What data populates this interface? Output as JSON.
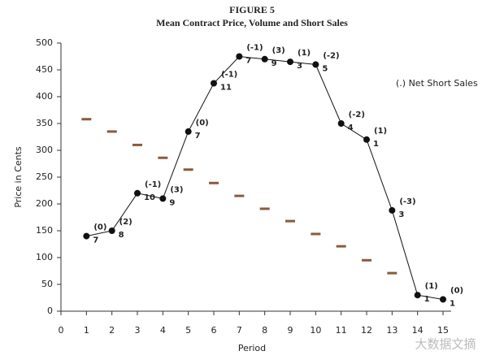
{
  "chart_data": {
    "type": "line",
    "title": "FIGURE 5",
    "subtitle": "Mean Contract Price, Volume and Short Sales",
    "x_label": "Period",
    "y_label": "Price in Cents",
    "annotation": "(.) Net Short Sales",
    "watermark": "大数据文摘",
    "x": [
      1,
      2,
      3,
      4,
      5,
      6,
      7,
      8,
      9,
      10,
      11,
      12,
      13,
      14,
      15
    ],
    "series": [
      {
        "style": "line",
        "color": "#111111",
        "values": [
          140,
          150,
          220,
          210,
          335,
          425,
          475,
          470,
          465,
          460,
          350,
          320,
          188,
          30,
          22
        ],
        "short_labels": [
          "(0)",
          "(2)",
          "(-1)",
          "(3)",
          "(0)",
          "(-1)",
          "(-1)",
          "(3)",
          "(1)",
          "(-2)",
          "(-2)",
          "(1)",
          "(-3)",
          "(1)",
          "(0)"
        ],
        "volume_labels": [
          "7",
          "8",
          "10",
          "9",
          "7",
          "11",
          "7",
          "9",
          "3",
          "5",
          "4",
          "1",
          "3",
          "1",
          "1"
        ]
      },
      {
        "style": "dash",
        "color": "#8b5a3c",
        "values": [
          358,
          335,
          310,
          286,
          264,
          239,
          215,
          191,
          168,
          144,
          121,
          95,
          71,
          null,
          null
        ]
      }
    ],
    "xlim": [
      0,
      15
    ],
    "xticks": [
      0,
      1,
      2,
      3,
      4,
      5,
      6,
      7,
      8,
      9,
      10,
      11,
      12,
      13,
      14,
      15
    ],
    "ylim": [
      0,
      500
    ],
    "yticks": [
      0,
      50,
      100,
      150,
      200,
      250,
      300,
      350,
      400,
      450,
      500
    ]
  }
}
